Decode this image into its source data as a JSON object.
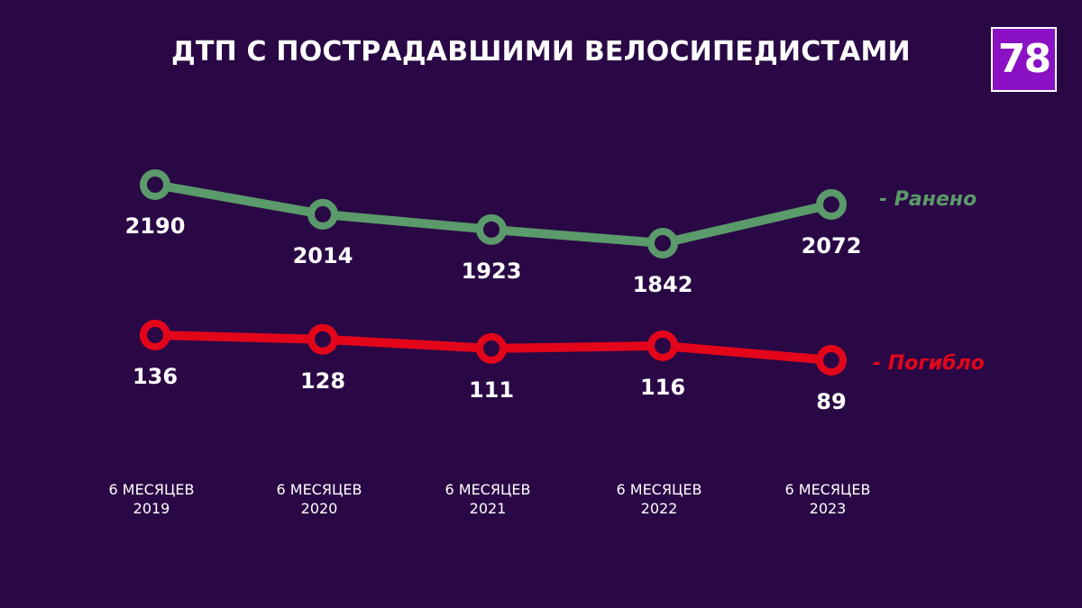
{
  "header": {
    "title": "ДТП С ПОСТРАДАВШИМИ ВЕЛОСИПЕДИСТАМИ",
    "logo_text": "78"
  },
  "colors": {
    "background": "#2a0845",
    "logo_bg": "#8a12c4",
    "injured": "#5b9a6a",
    "killed": "#e3061b"
  },
  "chart_data": {
    "type": "line",
    "title": "ДТП С ПОСТРАДАВШИМИ ВЕЛОСИПЕДИСТАМИ",
    "categories": [
      [
        "6 МЕСЯЦЕВ",
        "2019"
      ],
      [
        "6 МЕСЯЦЕВ",
        "2020"
      ],
      [
        "6 МЕСЯЦЕВ",
        "2021"
      ],
      [
        "6 МЕСЯЦЕВ",
        "2022"
      ],
      [
        "6 МЕСЯЦЕВ",
        "2023"
      ]
    ],
    "series": [
      {
        "name": "- Ранено",
        "color": "#5b9a6a",
        "values": [
          2190,
          2014,
          1923,
          1842,
          2072
        ]
      },
      {
        "name": "- Погибло",
        "color": "#e3061b",
        "values": [
          136,
          128,
          111,
          116,
          89
        ]
      }
    ],
    "grid": false,
    "legend": "right, at end of each line"
  }
}
